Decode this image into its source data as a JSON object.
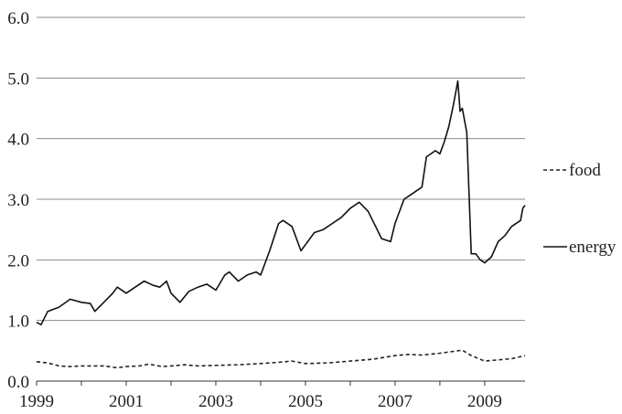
{
  "chart_data": {
    "type": "line",
    "title": "",
    "xlabel": "",
    "ylabel": "",
    "xlim": [
      1999,
      2009.9
    ],
    "ylim": [
      0,
      6
    ],
    "y_ticks": [
      "0.0",
      "1.0",
      "2.0",
      "3.0",
      "4.0",
      "5.0",
      "6.0"
    ],
    "x_ticks": [
      "1999",
      "2001",
      "2003",
      "2005",
      "2007",
      "2009"
    ],
    "grid": "horizontal",
    "legend_position": "right",
    "series": [
      {
        "name": "food",
        "style": "dashed",
        "color": "#222222",
        "x": [
          1999.0,
          1999.25,
          1999.5,
          1999.75,
          2000.0,
          2000.5,
          2000.8,
          2001.0,
          2001.3,
          2001.5,
          2001.8,
          2002.0,
          2002.3,
          2002.6,
          2003.0,
          2003.5,
          2004.0,
          2004.4,
          2004.7,
          2005.0,
          2005.5,
          2006.0,
          2006.5,
          2007.0,
          2007.3,
          2007.6,
          2008.0,
          2008.3,
          2008.5,
          2008.7,
          2009.0,
          2009.3,
          2009.6,
          2009.9
        ],
        "y": [
          0.32,
          0.3,
          0.25,
          0.24,
          0.25,
          0.25,
          0.22,
          0.24,
          0.25,
          0.28,
          0.24,
          0.25,
          0.27,
          0.25,
          0.26,
          0.27,
          0.29,
          0.31,
          0.33,
          0.29,
          0.3,
          0.33,
          0.36,
          0.42,
          0.44,
          0.43,
          0.46,
          0.49,
          0.51,
          0.42,
          0.33,
          0.35,
          0.37,
          0.42
        ]
      },
      {
        "name": "energy",
        "style": "solid",
        "color": "#111111",
        "x": [
          1999.0,
          1999.1,
          1999.25,
          1999.5,
          1999.75,
          2000.0,
          2000.2,
          2000.3,
          2000.5,
          2000.7,
          2000.8,
          2001.0,
          2001.2,
          2001.4,
          2001.6,
          2001.75,
          2001.9,
          2002.0,
          2002.2,
          2002.4,
          2002.6,
          2002.8,
          2002.9,
          2003.0,
          2003.2,
          2003.3,
          2003.5,
          2003.7,
          2003.9,
          2004.0,
          2004.2,
          2004.4,
          2004.5,
          2004.7,
          2004.9,
          2005.0,
          2005.2,
          2005.4,
          2005.6,
          2005.8,
          2006.0,
          2006.2,
          2006.4,
          2006.6,
          2006.7,
          2006.9,
          2007.0,
          2007.2,
          2007.4,
          2007.6,
          2007.7,
          2007.9,
          2008.0,
          2008.1,
          2008.2,
          2008.3,
          2008.4,
          2008.45,
          2008.5,
          2008.6,
          2008.7,
          2008.8,
          2008.9,
          2009.0,
          2009.15,
          2009.3,
          2009.45,
          2009.6,
          2009.8,
          2009.85,
          2009.9
        ],
        "y": [
          0.97,
          0.93,
          1.15,
          1.22,
          1.35,
          1.3,
          1.28,
          1.15,
          1.3,
          1.45,
          1.55,
          1.45,
          1.55,
          1.65,
          1.58,
          1.55,
          1.65,
          1.45,
          1.3,
          1.48,
          1.55,
          1.6,
          1.55,
          1.5,
          1.75,
          1.8,
          1.65,
          1.75,
          1.8,
          1.75,
          2.15,
          2.6,
          2.65,
          2.55,
          2.15,
          2.25,
          2.45,
          2.5,
          2.6,
          2.7,
          2.85,
          2.95,
          2.8,
          2.5,
          2.35,
          2.3,
          2.6,
          3.0,
          3.1,
          3.2,
          3.7,
          3.8,
          3.75,
          3.95,
          4.2,
          4.55,
          4.95,
          4.45,
          4.5,
          4.1,
          2.1,
          2.1,
          2.0,
          1.95,
          2.05,
          2.3,
          2.4,
          2.55,
          2.65,
          2.85,
          2.9
        ]
      }
    ]
  }
}
